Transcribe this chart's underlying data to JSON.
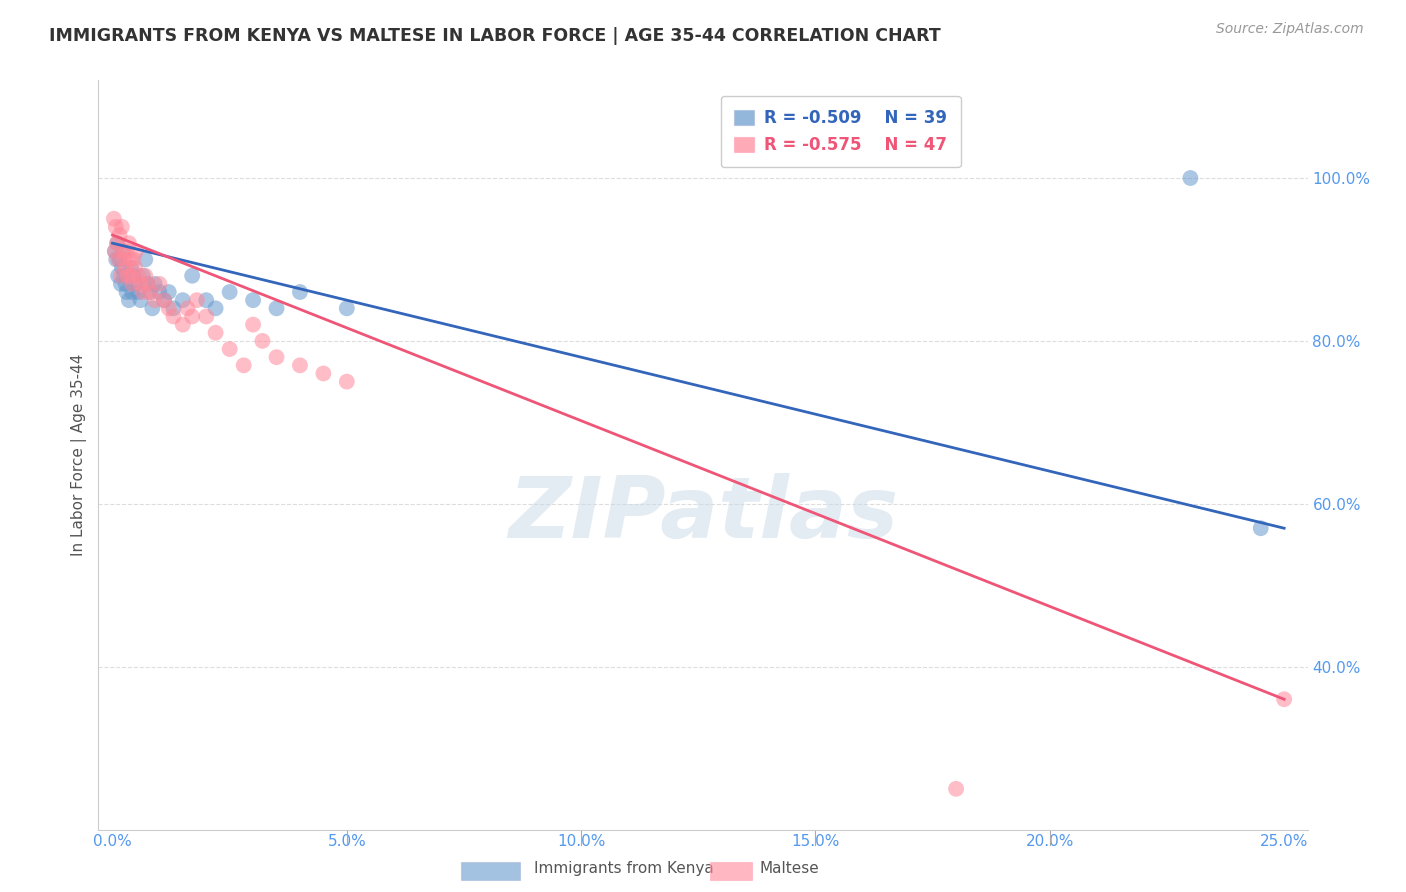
{
  "title": "IMMIGRANTS FROM KENYA VS MALTESE IN LABOR FORCE | AGE 35-44 CORRELATION CHART",
  "source": "Source: ZipAtlas.com",
  "xlabel_vals": [
    0.0,
    5.0,
    10.0,
    15.0,
    20.0,
    25.0
  ],
  "ylabel_vals": [
    40.0,
    60.0,
    80.0,
    100.0
  ],
  "ylabel_label": "In Labor Force | Age 35-44",
  "xlim": [
    -0.3,
    25.5
  ],
  "ylim": [
    20.0,
    112.0
  ],
  "legend_blue_r": "R = -0.509",
  "legend_blue_n": "N = 39",
  "legend_pink_r": "R = -0.575",
  "legend_pink_n": "N = 47",
  "legend_label_blue": "Immigrants from Kenya",
  "legend_label_pink": "Maltese",
  "blue_color": "#6699CC",
  "pink_color": "#FF8899",
  "blue_line_color": "#3366BB",
  "pink_line_color": "#EE5577",
  "blue_scatter": [
    [
      0.05,
      91
    ],
    [
      0.08,
      90
    ],
    [
      0.1,
      92
    ],
    [
      0.12,
      88
    ],
    [
      0.15,
      90
    ],
    [
      0.18,
      87
    ],
    [
      0.2,
      89
    ],
    [
      0.22,
      91
    ],
    [
      0.25,
      88
    ],
    [
      0.28,
      87
    ],
    [
      0.3,
      86
    ],
    [
      0.35,
      85
    ],
    [
      0.4,
      89
    ],
    [
      0.42,
      86
    ],
    [
      0.45,
      88
    ],
    [
      0.5,
      87
    ],
    [
      0.55,
      86
    ],
    [
      0.6,
      85
    ],
    [
      0.65,
      88
    ],
    [
      0.7,
      90
    ],
    [
      0.75,
      87
    ],
    [
      0.8,
      86
    ],
    [
      0.85,
      84
    ],
    [
      0.9,
      87
    ],
    [
      1.0,
      86
    ],
    [
      1.1,
      85
    ],
    [
      1.2,
      86
    ],
    [
      1.3,
      84
    ],
    [
      1.5,
      85
    ],
    [
      1.7,
      88
    ],
    [
      2.0,
      85
    ],
    [
      2.2,
      84
    ],
    [
      2.5,
      86
    ],
    [
      3.0,
      85
    ],
    [
      3.5,
      84
    ],
    [
      4.0,
      86
    ],
    [
      5.0,
      84
    ],
    [
      23.0,
      100
    ],
    [
      24.5,
      57
    ]
  ],
  "pink_scatter": [
    [
      0.03,
      95
    ],
    [
      0.05,
      91
    ],
    [
      0.07,
      94
    ],
    [
      0.1,
      92
    ],
    [
      0.12,
      90
    ],
    [
      0.15,
      93
    ],
    [
      0.18,
      88
    ],
    [
      0.2,
      94
    ],
    [
      0.22,
      91
    ],
    [
      0.25,
      90
    ],
    [
      0.28,
      89
    ],
    [
      0.3,
      91
    ],
    [
      0.32,
      88
    ],
    [
      0.35,
      92
    ],
    [
      0.38,
      90
    ],
    [
      0.4,
      88
    ],
    [
      0.42,
      87
    ],
    [
      0.45,
      90
    ],
    [
      0.48,
      89
    ],
    [
      0.5,
      91
    ],
    [
      0.55,
      88
    ],
    [
      0.6,
      87
    ],
    [
      0.65,
      86
    ],
    [
      0.7,
      88
    ],
    [
      0.75,
      87
    ],
    [
      0.8,
      86
    ],
    [
      0.9,
      85
    ],
    [
      1.0,
      87
    ],
    [
      1.1,
      85
    ],
    [
      1.2,
      84
    ],
    [
      1.3,
      83
    ],
    [
      1.5,
      82
    ],
    [
      1.6,
      84
    ],
    [
      1.7,
      83
    ],
    [
      1.8,
      85
    ],
    [
      2.0,
      83
    ],
    [
      2.2,
      81
    ],
    [
      2.5,
      79
    ],
    [
      2.8,
      77
    ],
    [
      3.0,
      82
    ],
    [
      3.2,
      80
    ],
    [
      3.5,
      78
    ],
    [
      4.0,
      77
    ],
    [
      4.5,
      76
    ],
    [
      5.0,
      75
    ],
    [
      18.0,
      25
    ],
    [
      25.0,
      36
    ]
  ],
  "blue_reg_y0": 92.0,
  "blue_reg_y25": 57.0,
  "pink_reg_y0": 93.0,
  "pink_reg_y25": 36.0,
  "watermark": "ZIPatlas",
  "background_color": "#ffffff",
  "grid_color": "#dddddd"
}
